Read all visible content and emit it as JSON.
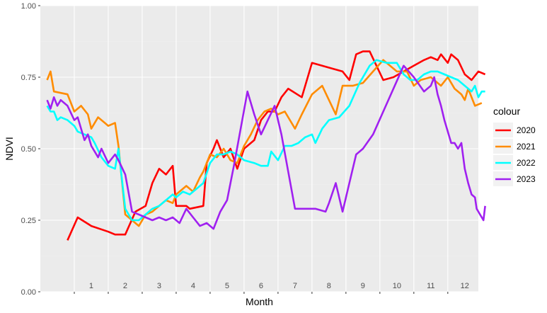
{
  "chart_data": {
    "type": "line",
    "xlabel": "Month",
    "ylabel": "NDVI",
    "xlim": [
      0,
      12.4
    ],
    "ylim": [
      0,
      1.0
    ],
    "grid": true,
    "legend_position": "right",
    "legend_title": "colour",
    "y_ticks": [
      0.0,
      0.25,
      0.5,
      0.75,
      1.0
    ],
    "y_tick_labels": [
      "0.00",
      "0.25",
      "0.50",
      "0.75",
      "1.00"
    ],
    "x_ticks": [
      1,
      2,
      3,
      4,
      5,
      6,
      7,
      8,
      9,
      10,
      11,
      12
    ],
    "x_tick_labels": [
      "1",
      "2",
      "3",
      "4",
      "5",
      "6",
      "7",
      "8",
      "9",
      "10",
      "11",
      "12"
    ],
    "colors": {
      "panel": "#ebebeb",
      "grid_major": "#ffffff",
      "grid_minor": "#f2f2f2"
    },
    "series": [
      {
        "name": "2020",
        "color": "#ff0000",
        "points": [
          [
            0.3,
            0.18
          ],
          [
            0.6,
            0.26
          ],
          [
            1.0,
            0.23
          ],
          [
            1.5,
            0.21
          ],
          [
            1.7,
            0.2
          ],
          [
            2.0,
            0.2
          ],
          [
            2.3,
            0.28
          ],
          [
            2.6,
            0.3
          ],
          [
            2.8,
            0.38
          ],
          [
            3.0,
            0.43
          ],
          [
            3.2,
            0.41
          ],
          [
            3.4,
            0.44
          ],
          [
            3.5,
            0.3
          ],
          [
            3.8,
            0.3
          ],
          [
            3.9,
            0.29
          ],
          [
            4.3,
            0.3
          ],
          [
            4.4,
            0.45
          ],
          [
            4.6,
            0.5
          ],
          [
            4.7,
            0.53
          ],
          [
            4.9,
            0.47
          ],
          [
            5.1,
            0.5
          ],
          [
            5.3,
            0.43
          ],
          [
            5.5,
            0.5
          ],
          [
            5.8,
            0.53
          ],
          [
            6.0,
            0.6
          ],
          [
            6.2,
            0.63
          ],
          [
            6.4,
            0.63
          ],
          [
            6.6,
            0.68
          ],
          [
            6.8,
            0.71
          ],
          [
            7.2,
            0.68
          ],
          [
            7.5,
            0.8
          ],
          [
            8.1,
            0.78
          ],
          [
            8.4,
            0.77
          ],
          [
            8.6,
            0.74
          ],
          [
            8.8,
            0.83
          ],
          [
            9.0,
            0.84
          ],
          [
            9.2,
            0.84
          ],
          [
            9.6,
            0.74
          ],
          [
            9.9,
            0.75
          ],
          [
            10.2,
            0.77
          ],
          [
            10.5,
            0.79
          ],
          [
            10.8,
            0.81
          ],
          [
            11.0,
            0.82
          ],
          [
            11.2,
            0.81
          ],
          [
            11.3,
            0.83
          ],
          [
            11.5,
            0.8
          ],
          [
            11.6,
            0.83
          ],
          [
            11.8,
            0.81
          ],
          [
            12.0,
            0.76
          ],
          [
            12.2,
            0.74
          ],
          [
            12.4,
            0.77
          ],
          [
            12.6,
            0.76
          ]
        ]
      },
      {
        "name": "2021",
        "color": "#ff8c00",
        "points": [
          [
            -0.3,
            0.74
          ],
          [
            -0.2,
            0.77
          ],
          [
            -0.1,
            0.7
          ],
          [
            0.3,
            0.69
          ],
          [
            0.5,
            0.63
          ],
          [
            0.7,
            0.65
          ],
          [
            0.9,
            0.62
          ],
          [
            1.0,
            0.57
          ],
          [
            1.2,
            0.61
          ],
          [
            1.4,
            0.59
          ],
          [
            1.5,
            0.58
          ],
          [
            1.7,
            0.59
          ],
          [
            1.8,
            0.51
          ],
          [
            2.0,
            0.27
          ],
          [
            2.2,
            0.25
          ],
          [
            2.4,
            0.23
          ],
          [
            2.6,
            0.27
          ],
          [
            2.8,
            0.28
          ],
          [
            3.0,
            0.3
          ],
          [
            3.2,
            0.32
          ],
          [
            3.4,
            0.31
          ],
          [
            3.5,
            0.34
          ],
          [
            3.8,
            0.37
          ],
          [
            4.0,
            0.35
          ],
          [
            4.2,
            0.4
          ],
          [
            4.3,
            0.42
          ],
          [
            4.5,
            0.48
          ],
          [
            4.7,
            0.47
          ],
          [
            4.9,
            0.5
          ],
          [
            5.1,
            0.46
          ],
          [
            5.3,
            0.45
          ],
          [
            5.5,
            0.51
          ],
          [
            5.7,
            0.55
          ],
          [
            5.9,
            0.6
          ],
          [
            6.1,
            0.63
          ],
          [
            6.3,
            0.64
          ],
          [
            6.5,
            0.62
          ],
          [
            6.7,
            0.63
          ],
          [
            7.0,
            0.57
          ],
          [
            7.2,
            0.62
          ],
          [
            7.5,
            0.69
          ],
          [
            7.8,
            0.72
          ],
          [
            8.0,
            0.67
          ],
          [
            8.2,
            0.62
          ],
          [
            8.4,
            0.72
          ],
          [
            8.7,
            0.72
          ],
          [
            9.0,
            0.73
          ],
          [
            9.3,
            0.77
          ],
          [
            9.6,
            0.81
          ],
          [
            10.0,
            0.77
          ],
          [
            10.3,
            0.77
          ],
          [
            10.5,
            0.72
          ],
          [
            10.7,
            0.74
          ],
          [
            11.0,
            0.75
          ],
          [
            11.3,
            0.72
          ],
          [
            11.5,
            0.75
          ],
          [
            11.7,
            0.71
          ],
          [
            11.9,
            0.69
          ],
          [
            12.0,
            0.67
          ],
          [
            12.1,
            0.71
          ],
          [
            12.3,
            0.65
          ],
          [
            12.5,
            0.66
          ]
        ]
      },
      {
        "name": "2022",
        "color": "#00ffff",
        "points": [
          [
            -0.3,
            0.65
          ],
          [
            -0.2,
            0.63
          ],
          [
            -0.1,
            0.63
          ],
          [
            0.0,
            0.6
          ],
          [
            0.1,
            0.61
          ],
          [
            0.3,
            0.6
          ],
          [
            0.5,
            0.58
          ],
          [
            0.6,
            0.56
          ],
          [
            0.8,
            0.55
          ],
          [
            1.0,
            0.54
          ],
          [
            1.1,
            0.52
          ],
          [
            1.3,
            0.47
          ],
          [
            1.5,
            0.44
          ],
          [
            1.7,
            0.43
          ],
          [
            1.8,
            0.5
          ],
          [
            2.0,
            0.29
          ],
          [
            2.2,
            0.25
          ],
          [
            2.4,
            0.25
          ],
          [
            2.6,
            0.27
          ],
          [
            2.8,
            0.29
          ],
          [
            3.0,
            0.3
          ],
          [
            3.2,
            0.32
          ],
          [
            3.4,
            0.34
          ],
          [
            3.5,
            0.33
          ],
          [
            3.7,
            0.35
          ],
          [
            3.9,
            0.34
          ],
          [
            4.1,
            0.36
          ],
          [
            4.3,
            0.38
          ],
          [
            4.5,
            0.45
          ],
          [
            4.7,
            0.48
          ],
          [
            4.9,
            0.48
          ],
          [
            5.1,
            0.49
          ],
          [
            5.3,
            0.48
          ],
          [
            5.5,
            0.46
          ],
          [
            5.8,
            0.45
          ],
          [
            6.0,
            0.44
          ],
          [
            6.2,
            0.44
          ],
          [
            6.3,
            0.49
          ],
          [
            6.5,
            0.46
          ],
          [
            6.7,
            0.51
          ],
          [
            6.9,
            0.51
          ],
          [
            7.1,
            0.52
          ],
          [
            7.3,
            0.54
          ],
          [
            7.5,
            0.55
          ],
          [
            7.6,
            0.52
          ],
          [
            7.8,
            0.57
          ],
          [
            8.0,
            0.6
          ],
          [
            8.3,
            0.61
          ],
          [
            8.6,
            0.65
          ],
          [
            8.9,
            0.73
          ],
          [
            9.2,
            0.79
          ],
          [
            9.4,
            0.81
          ],
          [
            9.7,
            0.8
          ],
          [
            10.0,
            0.8
          ],
          [
            10.2,
            0.76
          ],
          [
            10.4,
            0.74
          ],
          [
            10.6,
            0.74
          ],
          [
            10.8,
            0.76
          ],
          [
            11.0,
            0.77
          ],
          [
            11.2,
            0.77
          ],
          [
            11.4,
            0.76
          ],
          [
            11.6,
            0.75
          ],
          [
            11.8,
            0.74
          ],
          [
            12.0,
            0.72
          ],
          [
            12.2,
            0.7
          ],
          [
            12.3,
            0.72
          ],
          [
            12.4,
            0.68
          ],
          [
            12.5,
            0.7
          ],
          [
            12.6,
            0.7
          ]
        ]
      },
      {
        "name": "2023",
        "color": "#a020f0",
        "points": [
          [
            -0.3,
            0.67
          ],
          [
            -0.2,
            0.64
          ],
          [
            -0.1,
            0.68
          ],
          [
            0.0,
            0.65
          ],
          [
            0.1,
            0.67
          ],
          [
            0.3,
            0.65
          ],
          [
            0.5,
            0.6
          ],
          [
            0.6,
            0.61
          ],
          [
            0.7,
            0.57
          ],
          [
            0.8,
            0.53
          ],
          [
            0.9,
            0.55
          ],
          [
            1.0,
            0.51
          ],
          [
            1.2,
            0.47
          ],
          [
            1.3,
            0.5
          ],
          [
            1.5,
            0.45
          ],
          [
            1.7,
            0.48
          ],
          [
            1.8,
            0.46
          ],
          [
            2.0,
            0.41
          ],
          [
            2.2,
            0.28
          ],
          [
            2.4,
            0.27
          ],
          [
            2.6,
            0.26
          ],
          [
            2.8,
            0.25
          ],
          [
            3.0,
            0.26
          ],
          [
            3.2,
            0.25
          ],
          [
            3.4,
            0.26
          ],
          [
            3.6,
            0.24
          ],
          [
            3.8,
            0.29
          ],
          [
            4.0,
            0.26
          ],
          [
            4.2,
            0.23
          ],
          [
            4.4,
            0.24
          ],
          [
            4.6,
            0.22
          ],
          [
            4.8,
            0.28
          ],
          [
            5.0,
            0.32
          ],
          [
            5.2,
            0.44
          ],
          [
            5.4,
            0.57
          ],
          [
            5.6,
            0.7
          ],
          [
            5.8,
            0.62
          ],
          [
            6.0,
            0.55
          ],
          [
            6.2,
            0.6
          ],
          [
            6.4,
            0.65
          ],
          [
            6.6,
            0.55
          ],
          [
            6.8,
            0.42
          ],
          [
            7.0,
            0.29
          ],
          [
            7.3,
            0.29
          ],
          [
            7.6,
            0.29
          ],
          [
            7.9,
            0.28
          ],
          [
            8.0,
            0.31
          ],
          [
            8.2,
            0.38
          ],
          [
            8.4,
            0.28
          ],
          [
            8.6,
            0.38
          ],
          [
            8.8,
            0.48
          ],
          [
            9.0,
            0.5
          ],
          [
            9.3,
            0.55
          ],
          [
            9.6,
            0.63
          ],
          [
            9.9,
            0.71
          ],
          [
            10.2,
            0.79
          ],
          [
            10.5,
            0.75
          ],
          [
            10.8,
            0.7
          ],
          [
            11.0,
            0.72
          ],
          [
            11.1,
            0.75
          ],
          [
            11.2,
            0.69
          ],
          [
            11.3,
            0.65
          ],
          [
            11.4,
            0.6
          ],
          [
            11.5,
            0.56
          ],
          [
            11.6,
            0.52
          ],
          [
            11.7,
            0.52
          ],
          [
            11.8,
            0.5
          ],
          [
            11.9,
            0.52
          ],
          [
            12.0,
            0.43
          ],
          [
            12.1,
            0.38
          ],
          [
            12.2,
            0.34
          ],
          [
            12.3,
            0.33
          ],
          [
            12.35,
            0.29
          ],
          [
            12.4,
            0.28
          ],
          [
            12.5,
            0.26
          ],
          [
            12.55,
            0.25
          ],
          [
            12.6,
            0.3
          ]
        ]
      }
    ]
  }
}
